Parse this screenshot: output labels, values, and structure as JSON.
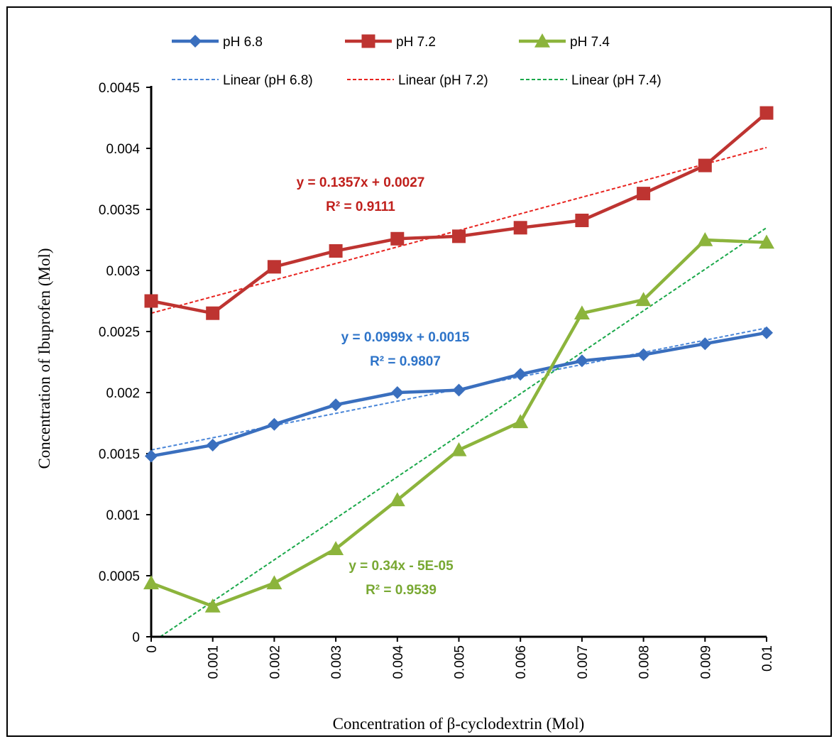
{
  "chart_data": {
    "type": "line",
    "xlabel": "Concentration of β-cyclodextrin (Mol)",
    "ylabel": "Concentration of Ibuprofen (Mol)",
    "xlim": [
      0,
      0.01
    ],
    "ylim": [
      0,
      0.0045
    ],
    "x_ticks": [
      "0",
      "0.001",
      "0.002",
      "0.003",
      "0.004",
      "0.005",
      "0.006",
      "0.007",
      "0.008",
      "0.009",
      "0.01"
    ],
    "y_ticks": [
      "0",
      "0.0005",
      "0.001",
      "0.0015",
      "0.002",
      "0.0025",
      "0.003",
      "0.0035",
      "0.004",
      "0.0045"
    ],
    "x": [
      0,
      0.001,
      0.002,
      0.003,
      0.004,
      0.005,
      0.006,
      0.007,
      0.008,
      0.009,
      0.01
    ],
    "grid": false,
    "legend_position": "top",
    "series": [
      {
        "name": "pH 6.8",
        "color": "#3a6fbe",
        "marker": "diamond",
        "values": [
          0.00148,
          0.00157,
          0.00174,
          0.0019,
          0.002,
          0.00202,
          0.00215,
          0.00226,
          0.00231,
          0.0024,
          0.00249
        ]
      },
      {
        "name": "pH 7.2",
        "color": "#be3431",
        "marker": "square",
        "values": [
          0.00275,
          0.00265,
          0.00303,
          0.00316,
          0.00326,
          0.00328,
          0.00335,
          0.00341,
          0.00363,
          0.00386,
          0.00429
        ]
      },
      {
        "name": "pH 7.4",
        "color": "#8cb43c",
        "marker": "triangle",
        "values": [
          0.00044,
          0.00025,
          0.00044,
          0.00072,
          0.00112,
          0.00153,
          0.00176,
          0.00265,
          0.00276,
          0.00325,
          0.00323
        ]
      }
    ],
    "trendlines": [
      {
        "name": "Linear (pH 6.8)",
        "color": "#4a86d8",
        "slope": 0.0999,
        "intercept": 0.00153,
        "equation": "y = 0.0999x + 0.0015",
        "r2": "R² = 0.9807"
      },
      {
        "name": "Linear (pH 7.2)",
        "color": "#e8231f",
        "slope": 0.1357,
        "intercept": 0.00265,
        "equation": "y = 0.1357x + 0.0027",
        "r2": "R² = 0.9111"
      },
      {
        "name": "Linear (pH 7.4)",
        "color": "#1aa84a",
        "slope": 0.34,
        "intercept": -5e-05,
        "equation": "y = 0.34x - 5E-05",
        "r2": "R² = 0.9539"
      }
    ]
  }
}
